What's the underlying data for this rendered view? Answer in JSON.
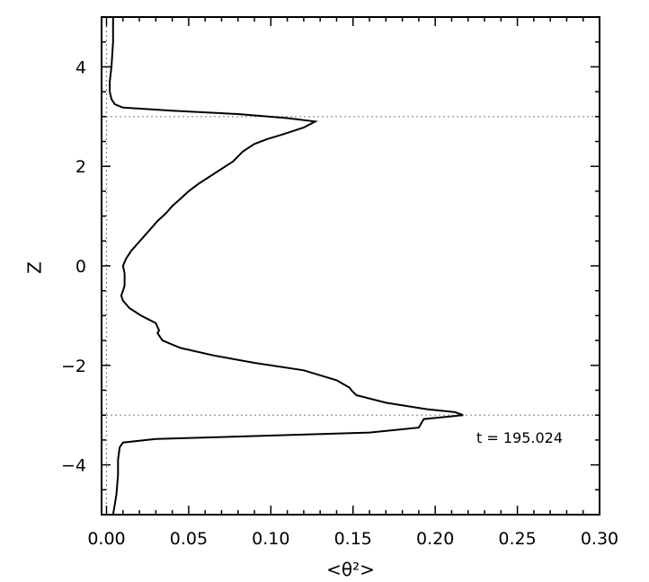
{
  "chart_data": {
    "type": "line",
    "title": "",
    "xlabel": "<θ²>",
    "ylabel": "Z",
    "xlim": [
      -0.003,
      0.3
    ],
    "ylim": [
      -5,
      5
    ],
    "xticks": [
      "0.00",
      "0.05",
      "0.10",
      "0.15",
      "0.20",
      "0.25",
      "0.30"
    ],
    "yticks": [
      "−4",
      "−2",
      "0",
      "2",
      "4"
    ],
    "annotation": "t  =  195.024",
    "reference_lines": {
      "vertical_x": 0.0,
      "horizontal_z": [
        3,
        -3
      ],
      "style": "dotted"
    },
    "series": [
      {
        "x": [
          0.004,
          0.004,
          0.003,
          0.002,
          0.002,
          0.003,
          0.005,
          0.01,
          0.04,
          0.08,
          0.11,
          0.127,
          0.12,
          0.108,
          0.098,
          0.09,
          0.083,
          0.077,
          0.07,
          0.063,
          0.056,
          0.05,
          0.045,
          0.04,
          0.036,
          0.031,
          0.027,
          0.023,
          0.019,
          0.015,
          0.012,
          0.01,
          0.011,
          0.011,
          0.011,
          0.01,
          0.009,
          0.01,
          0.014,
          0.021,
          0.03,
          0.032,
          0.031,
          0.034,
          0.045,
          0.065,
          0.09,
          0.12,
          0.14,
          0.148,
          0.149,
          0.152,
          0.17,
          0.195,
          0.212,
          0.217,
          0.193,
          0.19,
          0.16,
          0.09,
          0.03,
          0.01,
          0.008,
          0.007,
          0.007,
          0.006,
          0.004
        ],
        "y": [
          5.0,
          4.5,
          4.0,
          3.7,
          3.5,
          3.35,
          3.25,
          3.18,
          3.12,
          3.05,
          2.97,
          2.9,
          2.78,
          2.65,
          2.55,
          2.45,
          2.3,
          2.1,
          1.95,
          1.8,
          1.65,
          1.5,
          1.35,
          1.2,
          1.05,
          0.9,
          0.75,
          0.6,
          0.45,
          0.3,
          0.15,
          0.0,
          -0.15,
          -0.3,
          -0.4,
          -0.5,
          -0.6,
          -0.7,
          -0.85,
          -1.0,
          -1.15,
          -1.3,
          -1.35,
          -1.5,
          -1.65,
          -1.8,
          -1.95,
          -2.1,
          -2.3,
          -2.45,
          -2.5,
          -2.6,
          -2.75,
          -2.88,
          -2.94,
          -3.0,
          -3.08,
          -3.25,
          -3.35,
          -3.42,
          -3.48,
          -3.55,
          -3.65,
          -3.9,
          -4.2,
          -4.6,
          -5.0
        ]
      }
    ]
  }
}
